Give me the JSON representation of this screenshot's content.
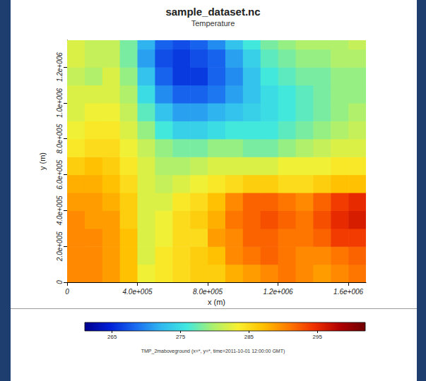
{
  "chart_data": {
    "type": "heatmap",
    "title": "sample_dataset.nc",
    "subtitle": "Temperature",
    "x_label": "x (m)",
    "y_label": "y (m)",
    "xlim": [
      0,
      1700000
    ],
    "ylim": [
      0,
      1350000
    ],
    "xticks": [
      0,
      {
        "value": 400000,
        "label": "4.0e+005"
      },
      {
        "value": 800000,
        "label": "8.0e+005"
      },
      {
        "value": 1200000,
        "label": "1.2e+006"
      },
      {
        "value": 1600000,
        "label": "1.6e+006"
      }
    ],
    "yticks": [
      0,
      {
        "value": 200000,
        "label": "2.0e+005"
      },
      {
        "value": 400000,
        "label": "4.0e+005"
      },
      {
        "value": 600000,
        "label": "6.0e+005"
      },
      {
        "value": 800000,
        "label": "8.0e+005"
      },
      {
        "value": 1000000,
        "label": "1.0e+006"
      },
      {
        "value": 1200000,
        "label": "1.2e+006"
      }
    ],
    "x": [
      50000,
      150000,
      250000,
      350000,
      450000,
      550000,
      650000,
      750000,
      850000,
      950000,
      1050000,
      1150000,
      1250000,
      1350000,
      1450000,
      1550000,
      1650000
    ],
    "y": [
      50000,
      150000,
      250000,
      350000,
      450000,
      550000,
      650000,
      750000,
      850000,
      950000,
      1050000,
      1150000,
      1250000,
      1350000
    ],
    "values": [
      [
        290,
        290,
        289,
        287,
        283,
        284,
        285,
        286,
        286,
        288,
        289,
        290,
        291,
        290,
        289,
        290,
        291
      ],
      [
        290,
        290,
        289,
        287,
        282,
        284,
        285,
        286,
        287,
        290,
        291,
        292,
        291,
        290,
        290,
        291,
        292
      ],
      [
        290,
        290,
        289,
        287,
        282,
        283,
        285,
        285,
        289,
        290,
        292,
        292,
        291,
        291,
        292,
        294,
        294
      ],
      [
        290,
        289,
        289,
        286,
        282,
        283,
        285,
        286,
        288,
        291,
        292,
        293,
        292,
        291,
        293,
        295,
        296
      ],
      [
        289,
        289,
        288,
        286,
        282,
        282,
        284,
        285,
        287,
        290,
        292,
        292,
        291,
        290,
        292,
        294,
        295
      ],
      [
        288,
        288,
        287,
        285,
        282,
        281,
        282,
        283,
        284,
        285,
        286,
        286,
        285,
        285,
        286,
        287,
        287
      ],
      [
        286,
        287,
        286,
        284,
        282,
        280,
        280,
        281,
        282,
        282,
        282,
        282,
        283,
        283,
        283,
        284,
        284
      ],
      [
        284,
        285,
        285,
        283,
        281,
        279,
        278,
        278,
        279,
        279,
        278,
        278,
        279,
        280,
        281,
        282,
        282
      ],
      [
        283,
        284,
        284,
        282,
        279,
        276,
        274,
        274,
        275,
        276,
        276,
        276,
        277,
        278,
        279,
        280,
        281
      ],
      [
        282,
        283,
        283,
        281,
        277,
        273,
        271,
        271,
        272,
        273,
        274,
        275,
        276,
        277,
        278,
        279,
        280
      ],
      [
        282,
        282,
        282,
        280,
        275,
        270,
        268,
        268,
        269,
        271,
        273,
        275,
        276,
        277,
        278,
        279,
        279
      ],
      [
        281,
        280,
        282,
        279,
        273,
        268,
        266,
        266,
        268,
        270,
        273,
        276,
        277,
        278,
        278,
        279,
        279
      ],
      [
        282,
        281,
        281,
        278,
        271,
        267,
        266,
        267,
        268,
        271,
        274,
        277,
        278,
        279,
        279,
        280,
        280
      ],
      [
        282,
        281,
        281,
        278,
        272,
        268,
        267,
        268,
        270,
        273,
        276,
        278,
        279,
        280,
        280,
        280,
        281
      ]
    ],
    "colorbar": {
      "label": "TMP_2maboveground (x=*, y=*, time=2011-10-01 12:00:00 GMT)",
      "range": [
        261,
        302
      ],
      "ticks": [
        265,
        275,
        285,
        295
      ]
    }
  }
}
